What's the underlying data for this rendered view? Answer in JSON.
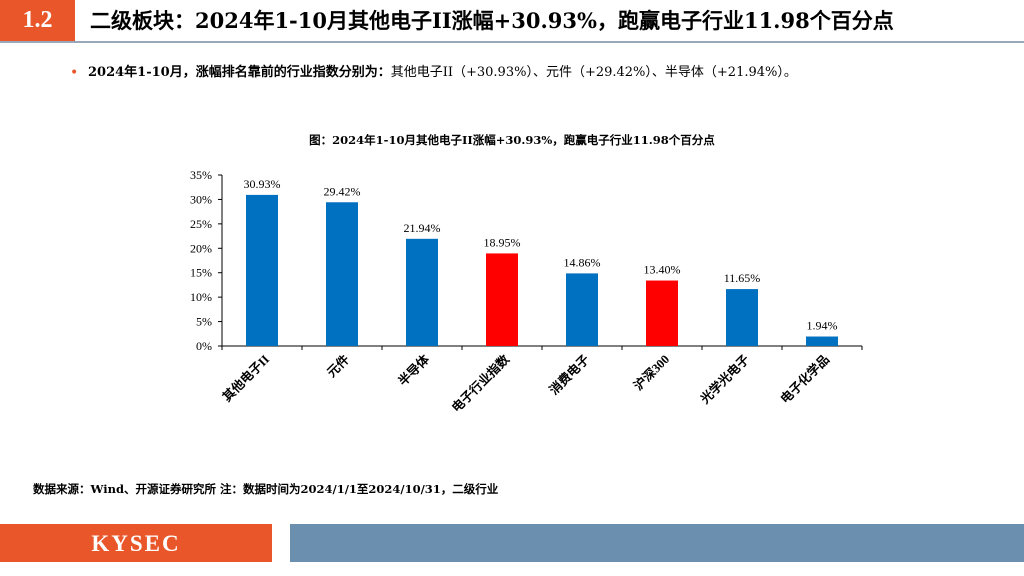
{
  "header": {
    "section_number": "1.2",
    "title": "二级板块：2024年1-10月其他电子II涨幅+30.93%，跑赢电子行业11.98个百分点"
  },
  "bullet": {
    "lead": "2024年1-10月，涨幅排名靠前的行业指数分别为：",
    "body": "其他电子II（+30.93%）、元件（+29.42%）、半导体（+21.94%）。"
  },
  "chart_title": "图：2024年1-10月其他电子II涨幅+30.93%，跑赢电子行业11.98个百分点",
  "source_note": "数据来源：Wind、开源证券研究所 注：数据时间为2024/1/1至2024/10/31，二级行业",
  "footer": {
    "logo_text": "KYSEC"
  },
  "colors": {
    "accent": "#E8562A",
    "bar_blue": "#0070C0",
    "bar_red": "#FF0000",
    "footer_grey": "#6B8FAF"
  },
  "chart_data": {
    "type": "bar",
    "title": "图：2024年1-10月其他电子II涨幅+30.93%，跑赢电子行业11.98个百分点",
    "categories": [
      "其他电子II",
      "元件",
      "半导体",
      "电子行业指数",
      "消费电子",
      "沪深300",
      "光学光电子",
      "电子化学品"
    ],
    "values": [
      30.93,
      29.42,
      21.94,
      18.95,
      14.86,
      13.4,
      11.65,
      1.94
    ],
    "value_labels": [
      "30.93%",
      "29.42%",
      "21.94%",
      "18.95%",
      "14.86%",
      "13.40%",
      "11.65%",
      "1.94%"
    ],
    "highlight": [
      false,
      false,
      false,
      true,
      false,
      true,
      false,
      false
    ],
    "yticks": [
      "0%",
      "5%",
      "10%",
      "15%",
      "20%",
      "25%",
      "30%",
      "35%"
    ],
    "ylim": [
      0,
      35
    ],
    "xlabel": "",
    "ylabel": "",
    "grid": false
  }
}
